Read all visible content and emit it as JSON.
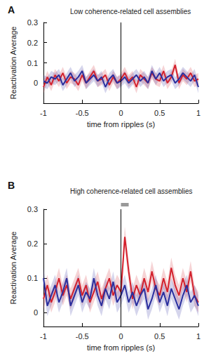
{
  "chart_data": [
    {
      "type": "line",
      "title": "Low coherence-related cell assemblies",
      "annotations": [
        {
          "text": "A"
        }
      ],
      "x_label": "time from ripples (s)",
      "y_label": "Reactivation Average",
      "x": [
        -1,
        -0.95,
        -0.9,
        -0.85,
        -0.8,
        -0.75,
        -0.7,
        -0.65,
        -0.6,
        -0.55,
        -0.5,
        -0.45,
        -0.4,
        -0.35,
        -0.3,
        -0.25,
        -0.2,
        -0.15,
        -0.1,
        -0.05,
        0,
        0.05,
        0.1,
        0.15,
        0.2,
        0.25,
        0.3,
        0.35,
        0.4,
        0.45,
        0.5,
        0.55,
        0.6,
        0.65,
        0.7,
        0.75,
        0.8,
        0.85,
        0.9,
        0.95,
        1
      ],
      "series": [
        {
          "color": "#d3212d",
          "values": [
            -0.02,
            0.03,
            -0.01,
            0.04,
            0.01,
            0.05,
            0.0,
            0.03,
            0.02,
            -0.01,
            0.04,
            0.0,
            0.03,
            0.06,
            0.01,
            0.02,
            0.04,
            -0.01,
            0.03,
            0.0,
            0.02,
            0.05,
            0.01,
            0.03,
            -0.02,
            0.04,
            0.02,
            0.0,
            0.05,
            0.02,
            0.01,
            0.06,
            0.0,
            0.03,
            0.09,
            0.0,
            0.04,
            0.02,
            0.05,
            0.01,
            0.02
          ],
          "error": [
            0.03,
            0.03,
            0.03,
            0.03,
            0.03,
            0.03,
            0.03,
            0.03,
            0.03,
            0.03,
            0.03,
            0.03,
            0.03,
            0.03,
            0.03,
            0.03,
            0.03,
            0.03,
            0.03,
            0.03,
            0.03,
            0.03,
            0.03,
            0.03,
            0.03,
            0.03,
            0.03,
            0.03,
            0.03,
            0.03,
            0.03,
            0.03,
            0.03,
            0.03,
            0.03,
            0.03,
            0.03,
            0.03,
            0.03,
            0.03,
            0.03
          ]
        },
        {
          "color": "#2b2f9e",
          "values": [
            0.01,
            0.0,
            0.03,
            0.02,
            0.04,
            -0.01,
            0.02,
            0.05,
            0.01,
            0.03,
            0.06,
            0.0,
            0.02,
            0.04,
            0.01,
            0.03,
            -0.02,
            0.02,
            0.04,
            0.0,
            0.01,
            0.03,
            0.0,
            0.02,
            0.04,
            0.01,
            0.03,
            0.0,
            0.06,
            0.02,
            0.05,
            0.01,
            0.03,
            0.04,
            0.0,
            0.02,
            0.05,
            0.03,
            0.01,
            0.04,
            -0.02
          ],
          "error": [
            0.03,
            0.03,
            0.03,
            0.03,
            0.03,
            0.03,
            0.03,
            0.03,
            0.03,
            0.03,
            0.03,
            0.03,
            0.03,
            0.03,
            0.03,
            0.03,
            0.03,
            0.03,
            0.03,
            0.03,
            0.03,
            0.03,
            0.03,
            0.03,
            0.03,
            0.03,
            0.03,
            0.03,
            0.03,
            0.03,
            0.03,
            0.03,
            0.03,
            0.03,
            0.03,
            0.03,
            0.03,
            0.03,
            0.03,
            0.03,
            0.03
          ]
        }
      ],
      "vline": 0,
      "xlim": [
        -1,
        1
      ],
      "xticks": [
        -1,
        -0.5,
        0,
        0.5,
        1
      ],
      "ylim": [
        -0.1,
        0.3
      ],
      "yticks": [
        0,
        0.1,
        0.2,
        0.3
      ],
      "grid": false
    },
    {
      "type": "line",
      "title": "High coherence-related cell assemblies",
      "annotations": [
        {
          "text": "B"
        }
      ],
      "x_label": "time from ripples (s)",
      "y_label": "Reactivation Average",
      "x": [
        -1,
        -0.95,
        -0.9,
        -0.85,
        -0.8,
        -0.75,
        -0.7,
        -0.65,
        -0.6,
        -0.55,
        -0.5,
        -0.45,
        -0.4,
        -0.35,
        -0.3,
        -0.25,
        -0.2,
        -0.15,
        -0.1,
        -0.05,
        0,
        0.05,
        0.1,
        0.15,
        0.2,
        0.25,
        0.3,
        0.35,
        0.4,
        0.45,
        0.5,
        0.55,
        0.6,
        0.65,
        0.7,
        0.75,
        0.8,
        0.85,
        0.9,
        0.95,
        1
      ],
      "series": [
        {
          "color": "#d3212d",
          "values": [
            0.04,
            0.08,
            0.03,
            0.06,
            0.1,
            0.05,
            0.08,
            0.04,
            0.07,
            0.1,
            0.05,
            0.08,
            0.03,
            0.06,
            0.09,
            0.04,
            0.07,
            0.1,
            0.05,
            0.08,
            0.06,
            0.22,
            0.12,
            0.04,
            0.08,
            0.05,
            0.1,
            0.06,
            0.12,
            0.07,
            0.05,
            0.1,
            0.06,
            0.13,
            0.08,
            0.05,
            0.1,
            0.06,
            0.12,
            0.05,
            0.03
          ],
          "error": [
            0.03,
            0.03,
            0.03,
            0.03,
            0.03,
            0.03,
            0.03,
            0.03,
            0.03,
            0.03,
            0.03,
            0.03,
            0.03,
            0.03,
            0.03,
            0.03,
            0.03,
            0.03,
            0.03,
            0.03,
            0.03,
            0.03,
            0.03,
            0.03,
            0.03,
            0.03,
            0.03,
            0.03,
            0.03,
            0.03,
            0.03,
            0.03,
            0.03,
            0.03,
            0.03,
            0.03,
            0.03,
            0.03,
            0.03,
            0.03,
            0.03
          ]
        },
        {
          "color": "#2b2f9e",
          "values": [
            0.1,
            0.02,
            0.05,
            0.08,
            0.03,
            0.06,
            0.1,
            0.02,
            0.05,
            0.08,
            0.03,
            0.06,
            0.04,
            0.1,
            0.05,
            0.02,
            0.07,
            0.04,
            0.09,
            0.03,
            0.05,
            0.08,
            0.03,
            0.06,
            0.02,
            0.05,
            0.07,
            0.01,
            0.04,
            0.08,
            0.03,
            0.06,
            0.02,
            0.07,
            0.04,
            0.01,
            0.05,
            0.08,
            0.03,
            0.05,
            0.02
          ],
          "error": [
            0.03,
            0.03,
            0.03,
            0.03,
            0.03,
            0.03,
            0.03,
            0.03,
            0.03,
            0.03,
            0.03,
            0.03,
            0.03,
            0.03,
            0.03,
            0.03,
            0.03,
            0.03,
            0.03,
            0.03,
            0.03,
            0.03,
            0.03,
            0.03,
            0.03,
            0.03,
            0.03,
            0.03,
            0.03,
            0.03,
            0.03,
            0.03,
            0.03,
            0.03,
            0.03,
            0.03,
            0.03,
            0.03,
            0.03,
            0.03,
            0.03
          ]
        }
      ],
      "vline": 0,
      "significance_bar": {
        "x": [
          0,
          0.1
        ]
      },
      "xlim": [
        -1,
        1
      ],
      "xticks": [
        -1,
        -0.5,
        0,
        0.5,
        1
      ],
      "ylim": [
        -0.04,
        0.3
      ],
      "yticks": [
        0,
        0.1,
        0.2,
        0.3
      ],
      "grid": false
    }
  ]
}
